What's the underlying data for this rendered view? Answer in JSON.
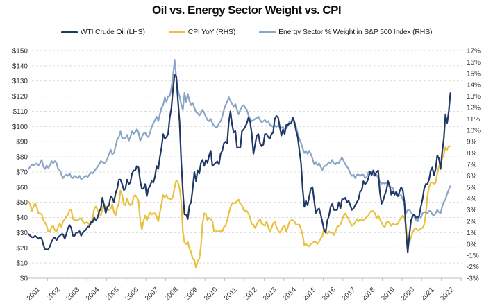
{
  "title": "Oil vs. Energy Sector Weight vs. CPI",
  "legend": {
    "position": "top",
    "items": [
      {
        "label": "WTI Crude Oil (LHS)",
        "color": "#1f3864"
      },
      {
        "label": "CPI YoY (RHS)",
        "color": "#e9c13f"
      },
      {
        "label": "Energy Sector % Weight in S&P 500 Index (RHS)",
        "color": "#8aa5c6"
      }
    ]
  },
  "chart_data": {
    "type": "line",
    "title": "Oil vs. Energy Sector Weight vs. CPI",
    "grid": "horizontal-dashed",
    "x_start": "2001-01",
    "x_end": "2022-06",
    "points_per_year": 12,
    "x_tick_labels": [
      "2001",
      "2002",
      "2003",
      "2004",
      "2005",
      "2006",
      "2007",
      "2008",
      "2009",
      "2010",
      "2011",
      "2012",
      "2013",
      "2014",
      "2015",
      "2016",
      "2017",
      "2018",
      "2019",
      "2020",
      "2021",
      "2022"
    ],
    "left_axis": {
      "min": 0,
      "max": 150,
      "step": 10,
      "format": "dollars",
      "tick_labels": [
        "$150",
        "$140",
        "$130",
        "$120",
        "$110",
        "$100",
        "$90",
        "$80",
        "$70",
        "$60",
        "$50",
        "$40",
        "$30",
        "$20",
        "$10",
        "$0"
      ]
    },
    "right_axis": {
      "min": -3,
      "max": 17,
      "step": 1,
      "format": "percent",
      "tick_labels": [
        "17%",
        "16%",
        "15%",
        "14%",
        "13%",
        "12%",
        "11%",
        "10%",
        "9%",
        "8%",
        "7%",
        "6%",
        "5%",
        "4%",
        "3%",
        "2%",
        "1%",
        "0%",
        "-1%",
        "-2%",
        "-3%"
      ]
    },
    "series": [
      {
        "name": "WTI Crude Oil (LHS)",
        "axis": "left",
        "color": "#1f3864",
        "values": [
          29,
          28,
          27,
          27,
          28,
          27,
          26,
          27,
          26,
          22,
          19,
          19,
          19,
          21,
          24,
          26,
          27,
          25,
          27,
          28,
          29,
          29,
          26,
          29,
          33,
          35,
          33,
          28,
          28,
          30,
          30,
          31,
          28,
          30,
          31,
          32,
          34,
          34,
          37,
          37,
          40,
          38,
          40,
          44,
          46,
          53,
          48,
          43,
          47,
          48,
          54,
          53,
          50,
          56,
          59,
          65,
          65,
          62,
          58,
          59,
          65,
          62,
          63,
          69,
          71,
          71,
          74,
          73,
          64,
          59,
          59,
          62,
          54,
          59,
          61,
          64,
          63,
          67,
          74,
          72,
          80,
          86,
          95,
          92,
          93,
          95,
          106,
          112,
          125,
          134,
          133,
          117,
          103,
          77,
          57,
          42,
          42,
          39,
          48,
          50,
          59,
          70,
          64,
          71,
          69,
          76,
          78,
          74,
          78,
          76,
          81,
          84,
          74,
          75,
          76,
          77,
          75,
          82,
          84,
          89,
          90,
          89,
          103,
          110,
          101,
          96,
          97,
          86,
          86,
          86,
          97,
          98,
          100,
          102,
          106,
          103,
          95,
          82,
          88,
          94,
          95,
          89,
          87,
          88,
          95,
          95,
          93,
          92,
          95,
          96,
          105,
          107,
          106,
          100,
          94,
          98,
          95,
          101,
          101,
          102,
          102,
          106,
          103,
          97,
          93,
          84,
          76,
          59,
          47,
          51,
          48,
          54,
          59,
          60,
          51,
          43,
          45,
          46,
          42,
          37,
          32,
          30,
          38,
          41,
          47,
          49,
          45,
          45,
          45,
          50,
          46,
          52,
          52,
          53,
          50,
          51,
          48,
          45,
          46,
          48,
          50,
          52,
          57,
          58,
          64,
          62,
          63,
          66,
          70,
          68,
          71,
          68,
          70,
          71,
          57,
          49,
          51,
          55,
          58,
          64,
          61,
          55,
          57,
          55,
          57,
          54,
          57,
          60,
          58,
          50,
          30,
          17,
          28,
          38,
          41,
          42,
          40,
          40,
          41,
          47,
          52,
          59,
          62,
          62,
          65,
          71,
          73,
          68,
          72,
          81,
          79,
          72,
          83,
          92,
          108,
          102,
          110,
          122
        ]
      },
      {
        "name": "CPI YoY (RHS)",
        "axis": "right",
        "color": "#e9c13f",
        "values": [
          3.7,
          3.5,
          2.9,
          3.3,
          3.6,
          3.2,
          2.7,
          2.7,
          2.6,
          2.1,
          1.9,
          1.6,
          1.1,
          1.1,
          1.5,
          1.6,
          1.2,
          1.1,
          1.5,
          1.8,
          1.5,
          2.0,
          2.2,
          2.4,
          2.6,
          3.0,
          3.0,
          2.2,
          2.1,
          2.1,
          2.1,
          2.2,
          2.3,
          2.0,
          1.8,
          1.9,
          1.9,
          1.7,
          1.7,
          2.3,
          3.1,
          3.3,
          3.0,
          2.7,
          2.5,
          3.2,
          3.5,
          3.3,
          3.0,
          3.0,
          3.1,
          3.5,
          2.8,
          2.5,
          3.2,
          3.6,
          4.7,
          4.3,
          3.5,
          3.4,
          4.0,
          3.6,
          3.4,
          3.5,
          4.2,
          4.3,
          4.1,
          3.8,
          2.1,
          1.3,
          2.0,
          2.5,
          2.1,
          2.4,
          2.8,
          2.6,
          2.7,
          2.7,
          2.4,
          2.0,
          2.8,
          3.5,
          4.3,
          4.1,
          4.3,
          4.0,
          4.0,
          3.9,
          4.2,
          5.0,
          5.6,
          5.4,
          4.9,
          3.7,
          1.1,
          0.1,
          0.0,
          0.2,
          -0.4,
          -0.7,
          -1.3,
          -1.4,
          -2.1,
          -1.5,
          -1.3,
          -0.2,
          1.8,
          2.7,
          2.6,
          2.1,
          2.3,
          2.2,
          2.0,
          1.1,
          1.2,
          1.1,
          1.1,
          1.2,
          1.1,
          1.5,
          1.6,
          2.1,
          2.7,
          3.2,
          3.6,
          3.6,
          3.6,
          3.8,
          3.9,
          3.5,
          3.4,
          3.0,
          2.9,
          2.9,
          2.7,
          2.3,
          1.7,
          1.7,
          1.4,
          1.7,
          2.0,
          2.2,
          1.8,
          1.7,
          1.6,
          2.0,
          1.5,
          1.1,
          1.4,
          1.8,
          2.0,
          1.5,
          1.2,
          1.0,
          1.2,
          1.5,
          1.6,
          1.1,
          1.5,
          2.0,
          2.1,
          2.1,
          2.0,
          1.7,
          1.7,
          1.7,
          1.3,
          0.8,
          -0.1,
          0.0,
          -0.1,
          -0.2,
          0.0,
          0.1,
          0.2,
          0.2,
          0.0,
          0.2,
          0.5,
          0.7,
          1.4,
          1.0,
          0.9,
          1.1,
          1.0,
          1.0,
          0.8,
          1.1,
          1.5,
          1.6,
          1.7,
          2.1,
          2.5,
          2.7,
          2.4,
          2.2,
          1.9,
          1.6,
          1.7,
          1.9,
          2.2,
          2.0,
          2.2,
          2.1,
          2.1,
          2.2,
          2.4,
          2.5,
          2.8,
          2.9,
          2.9,
          2.7,
          2.3,
          2.5,
          2.2,
          1.9,
          1.6,
          1.5,
          1.9,
          2.0,
          1.8,
          1.6,
          1.8,
          1.7,
          1.7,
          1.8,
          2.1,
          2.3,
          2.5,
          2.3,
          1.5,
          0.3,
          0.1,
          0.6,
          1.0,
          1.3,
          1.4,
          1.2,
          1.2,
          1.4,
          1.4,
          1.7,
          2.6,
          4.2,
          5.0,
          5.4,
          5.4,
          5.3,
          5.4,
          6.2,
          6.8,
          7.0,
          7.5,
          7.9,
          8.5,
          8.3,
          8.6,
          8.6
        ]
      },
      {
        "name": "Energy Sector % Weight in S&P 500 Index (RHS)",
        "axis": "right",
        "color": "#8aa5c6",
        "values": [
          6.6,
          6.8,
          7.0,
          6.9,
          7.0,
          7.1,
          6.9,
          7.1,
          7.4,
          6.8,
          6.6,
          6.9,
          6.7,
          6.9,
          7.3,
          7.1,
          7.3,
          7.1,
          6.6,
          6.5,
          6.1,
          5.8,
          6.0,
          6.1,
          6.0,
          6.2,
          5.9,
          5.8,
          6.0,
          5.9,
          5.8,
          6.0,
          5.7,
          5.8,
          5.9,
          6.0,
          5.9,
          6.1,
          6.3,
          6.2,
          6.4,
          6.6,
          6.8,
          7.0,
          7.3,
          7.2,
          7.1,
          7.2,
          7.5,
          7.9,
          8.3,
          7.9,
          8.0,
          8.6,
          9.2,
          9.4,
          9.9,
          9.3,
          9.3,
          9.3,
          9.6,
          9.1,
          9.4,
          9.9,
          9.7,
          9.8,
          10.1,
          9.8,
          9.1,
          9.4,
          9.7,
          9.8,
          9.5,
          9.4,
          9.8,
          10.3,
          10.6,
          10.9,
          11.2,
          10.8,
          11.4,
          12.0,
          12.2,
          12.9,
          12.5,
          13.0,
          13.0,
          13.7,
          14.8,
          16.2,
          14.6,
          13.5,
          13.0,
          12.3,
          11.8,
          13.3,
          12.5,
          13.2,
          12.6,
          12.2,
          12.4,
          12.0,
          11.6,
          11.5,
          11.3,
          11.5,
          11.8,
          11.5,
          11.2,
          10.9,
          10.8,
          11.0,
          10.6,
          10.4,
          10.3,
          10.3,
          10.6,
          10.8,
          11.2,
          11.8,
          12.2,
          12.5,
          12.9,
          12.6,
          12.3,
          12.1,
          12.3,
          11.8,
          11.4,
          11.8,
          12.1,
          12.2,
          12.0,
          11.8,
          11.3,
          11.0,
          10.8,
          10.9,
          11.0,
          11.1,
          11.2,
          10.9,
          10.7,
          10.8,
          10.9,
          10.7,
          10.8,
          10.5,
          10.4,
          10.3,
          10.4,
          10.3,
          10.4,
          10.3,
          10.2,
          10.3,
          10.0,
          10.2,
          10.4,
          10.8,
          10.6,
          11.0,
          10.5,
          10.3,
          9.7,
          9.2,
          8.9,
          8.4,
          8.0,
          8.2,
          7.9,
          8.2,
          7.9,
          7.5,
          7.0,
          7.2,
          6.9,
          7.1,
          6.8,
          6.5,
          6.8,
          6.9,
          7.0,
          7.2,
          7.1,
          7.4,
          7.1,
          7.0,
          7.2,
          7.1,
          7.4,
          7.6,
          7.3,
          7.0,
          6.8,
          6.6,
          6.2,
          6.0,
          6.1,
          5.8,
          6.1,
          6.1,
          6.0,
          6.1,
          6.1,
          5.8,
          5.9,
          6.3,
          6.4,
          6.3,
          6.1,
          6.0,
          6.1,
          5.8,
          5.5,
          5.3,
          5.4,
          5.3,
          5.4,
          5.2,
          5.0,
          5.0,
          4.9,
          4.4,
          4.6,
          4.3,
          4.3,
          4.3,
          3.9,
          3.4,
          2.7,
          3.0,
          3.0,
          2.8,
          2.6,
          2.4,
          2.1,
          2.0,
          2.5,
          2.3,
          2.7,
          2.8,
          2.8,
          2.7,
          2.9,
          2.9,
          2.6,
          2.5,
          2.7,
          3.0,
          2.8,
          2.7,
          3.3,
          3.7,
          3.9,
          4.4,
          4.8,
          5.1
        ]
      }
    ],
    "style": {
      "gridline_color": "#d9d9d9",
      "axis_line_color": "#bfbfbf",
      "axis_text_color": "#333333",
      "background": "#ffffff"
    }
  }
}
